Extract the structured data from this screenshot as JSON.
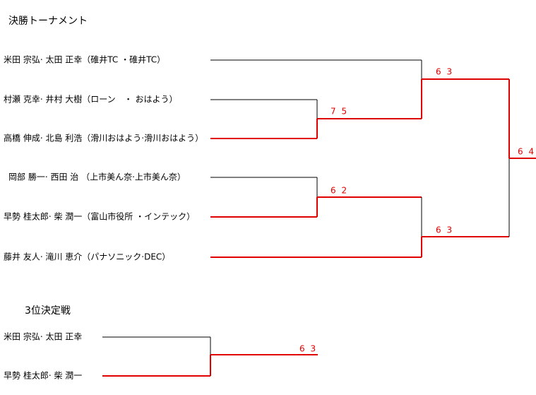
{
  "title": "決勝トーナメント",
  "main": {
    "players": [
      "米田 宗弘· 太田 正幸（碓井TC ・碓井TC）",
      "村瀬 克幸· 井村 大樹（ローン　・ おはよう）",
      "高橋 伸成· 北島 利浩（滑川おはよう·滑川おはよう）",
      "岡部 勝一· 西田 治 （上市美ん奈·上市美ん奈）",
      "早勢 桂太郎· 柴 潤一（富山市役所 ・インテック）",
      "藤井 友人· 滝川 恵介（パナソニック·DEC）"
    ],
    "scores": [
      "7 5",
      "6 3",
      "6 2",
      "6 3",
      "6 4"
    ]
  },
  "third_place": {
    "title": "3位決定戦",
    "players": [
      "米田 宗弘· 太田 正幸",
      "早勢 桂太郎· 柴 潤一"
    ],
    "score": "6 3"
  }
}
